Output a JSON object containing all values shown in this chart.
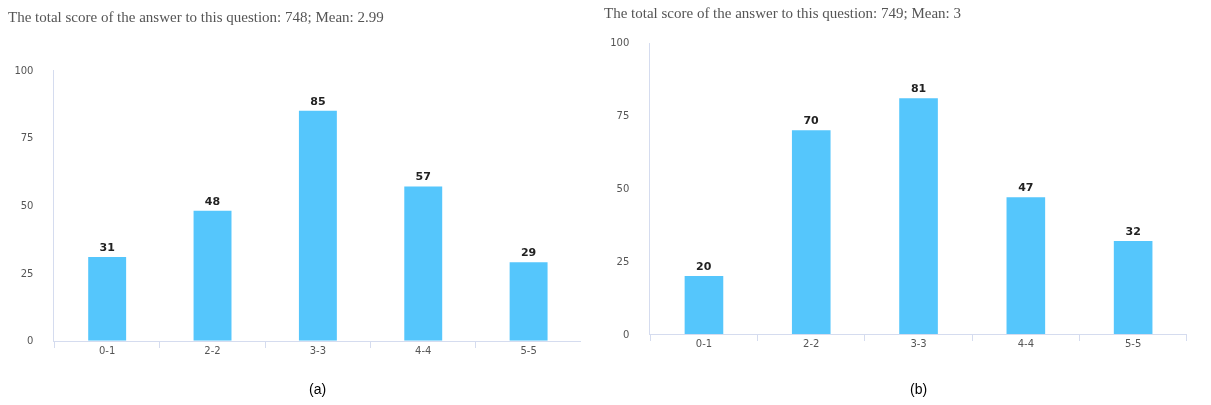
{
  "chart_data": [
    {
      "type": "bar",
      "title": "The total score of the answer to this question: 748; Mean: 2.99",
      "categories": [
        "0-1",
        "2-2",
        "3-3",
        "4-4",
        "5-5"
      ],
      "values": [
        31,
        48,
        85,
        57,
        29
      ],
      "color": "#55c6fc",
      "ylim": [
        0,
        100
      ],
      "yticks": [
        0,
        25,
        50,
        75,
        100
      ],
      "grid": false,
      "data_labels": true,
      "annotations": [
        "(a)"
      ]
    },
    {
      "type": "bar",
      "title": "The total score of the answer to this question: 749; Mean: 3",
      "categories": [
        "0-1",
        "2-2",
        "3-3",
        "4-4",
        "5-5"
      ],
      "values": [
        20,
        70,
        81,
        47,
        32
      ],
      "color": "#55c6fc",
      "ylim": [
        0,
        100
      ],
      "yticks": [
        0,
        25,
        50,
        75,
        100
      ],
      "grid": false,
      "data_labels": true,
      "annotations": [
        "(b)"
      ]
    }
  ]
}
